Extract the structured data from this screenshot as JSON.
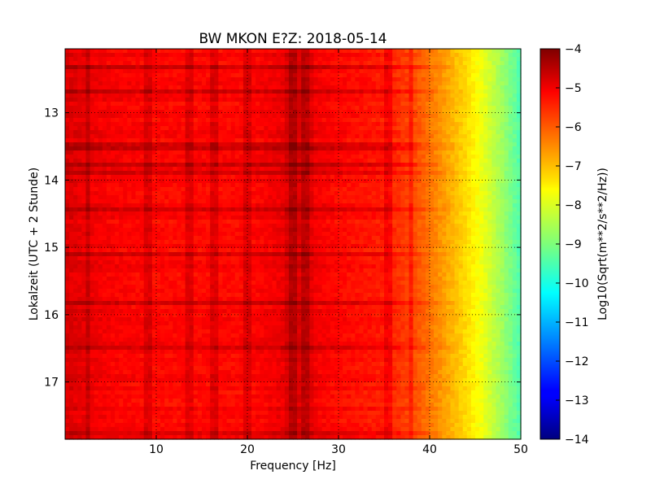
{
  "chart_data": {
    "type": "heatmap",
    "title": "BW MKON E?Z: 2018-05-14",
    "xlabel": "Frequency [Hz]",
    "ylabel": "Lokalzeit (UTC + 2 Stunde)",
    "colorbar_label": "Log10(Sqrt(m**2/s**2/Hz))",
    "xlim": [
      0,
      50
    ],
    "ylim": [
      12.05,
      17.85
    ],
    "y_inverted": true,
    "x_ticks": [
      10,
      20,
      30,
      40,
      50
    ],
    "y_ticks": [
      13,
      14,
      15,
      16,
      17
    ],
    "clim": [
      -14,
      -4
    ],
    "colorbar_ticks": [
      -4,
      -5,
      -6,
      -7,
      -8,
      -9,
      -10,
      -11,
      -12,
      -13,
      -14
    ],
    "colormap": "jet",
    "grid": true,
    "spectral_profile": {
      "frequency_hz": [
        0,
        5,
        10,
        15,
        20,
        25,
        30,
        35,
        38,
        40,
        42,
        44,
        46,
        48,
        50
      ],
      "log10_amplitude": [
        -4.9,
        -5.2,
        -5.3,
        -5.3,
        -5.3,
        -5.0,
        -5.3,
        -5.5,
        -5.9,
        -6.4,
        -6.9,
        -7.4,
        -8.0,
        -8.7,
        -9.5
      ]
    },
    "strong_vertical_lines_hz": [
      2.5,
      9,
      13.5,
      16.5,
      20,
      25,
      26.5,
      35.5,
      38
    ],
    "strong_horizontal_bands_hours": [
      12.3,
      12.7,
      13.5,
      13.75,
      13.9,
      14.45,
      15.1,
      15.85,
      16.5,
      17.75
    ]
  }
}
